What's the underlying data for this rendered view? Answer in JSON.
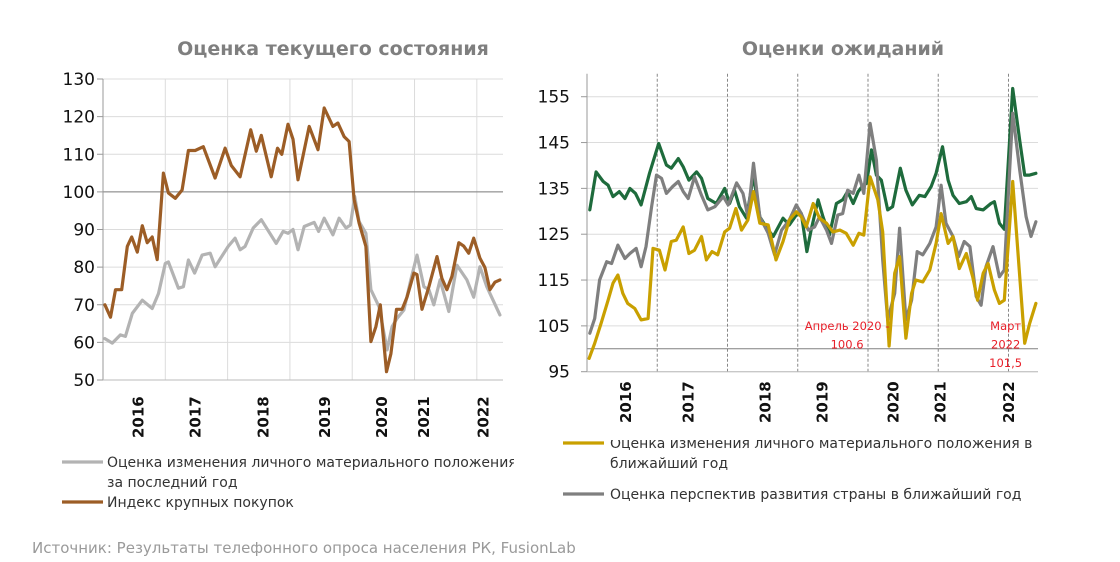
{
  "source": "Источник: Результаты телефонного опроса населения РК, FusionLab",
  "chart_data": [
    {
      "type": "line",
      "title": "Оценка текущего состояния",
      "xlim": [
        2016.0,
        2022.42
      ],
      "ylim": [
        50,
        130
      ],
      "yticks": [
        50,
        60,
        70,
        80,
        90,
        100,
        110,
        120,
        130
      ],
      "xtick_labels": [
        "2016",
        "2017",
        "2018",
        "2019",
        "2020",
        "2021",
        "2022"
      ],
      "xtick_label_pos": [
        2016.55,
        2017.47,
        2018.56,
        2019.55,
        2020.46,
        2021.14,
        2022.09
      ],
      "year_gridlines": [
        2017,
        2018,
        2019,
        2020,
        2021,
        2022
      ],
      "reference_line": 100,
      "grid": true,
      "legend_placement": "bottom",
      "series": [
        {
          "name": "Оценка изменения личного материального положения за последний год",
          "legend_line2": "за последний год",
          "legend_line1": "Оценка изменения личного материального положения",
          "color": "#b3b3b3",
          "x": [
            2016.03,
            2016.15,
            2016.28,
            2016.36,
            2016.47,
            2016.63,
            2016.79,
            2016.89,
            2017.0,
            2017.05,
            2017.21,
            2017.29,
            2017.37,
            2017.47,
            2017.59,
            2017.72,
            2017.8,
            2018.01,
            2018.12,
            2018.2,
            2018.28,
            2018.41,
            2018.54,
            2018.78,
            2018.89,
            2018.97,
            2019.05,
            2019.13,
            2019.23,
            2019.39,
            2019.46,
            2019.55,
            2019.69,
            2019.79,
            2019.9,
            2019.97,
            2020.04,
            2020.11,
            2020.22,
            2020.3,
            2020.43,
            2020.56,
            2020.64,
            2020.72,
            2020.83,
            2020.94,
            2021.04,
            2021.15,
            2021.23,
            2021.31,
            2021.41,
            2021.55,
            2021.68,
            2021.84,
            2021.95,
            2022.05,
            2022.16,
            2022.37
          ],
          "y": [
            61,
            59.8,
            62,
            61.6,
            67.7,
            71.2,
            69,
            73,
            81,
            81.4,
            74.4,
            74.8,
            81.9,
            78.4,
            83.2,
            83.7,
            80.1,
            85.5,
            87.7,
            84.6,
            85.5,
            90.4,
            92.6,
            86.3,
            89.5,
            89,
            90,
            84.6,
            90.8,
            91.9,
            89.5,
            93,
            88.6,
            93,
            90.4,
            91.2,
            98.8,
            92.1,
            89,
            74,
            69.5,
            58,
            64.2,
            66.4,
            68.6,
            76.6,
            83.2,
            74.8,
            74,
            70,
            76.6,
            68.2,
            80.5,
            76.6,
            72,
            80.1,
            74.8,
            67.3
          ]
        },
        {
          "name": "Индекс крупных покупок",
          "color": "#9c5d26",
          "x": [
            2016.03,
            2016.12,
            2016.2,
            2016.3,
            2016.39,
            2016.46,
            2016.55,
            2016.63,
            2016.71,
            2016.79,
            2016.87,
            2016.97,
            2017.05,
            2017.16,
            2017.27,
            2017.37,
            2017.48,
            2017.61,
            2017.8,
            2017.96,
            2018.06,
            2018.2,
            2018.37,
            2018.46,
            2018.54,
            2018.7,
            2018.8,
            2018.87,
            2018.97,
            2019.05,
            2019.13,
            2019.31,
            2019.45,
            2019.55,
            2019.69,
            2019.77,
            2019.87,
            2019.95,
            2020.03,
            2020.11,
            2020.22,
            2020.3,
            2020.38,
            2020.45,
            2020.55,
            2020.62,
            2020.71,
            2020.8,
            2020.88,
            2020.99,
            2021.04,
            2021.12,
            2021.23,
            2021.36,
            2021.44,
            2021.52,
            2021.6,
            2021.71,
            2021.79,
            2021.87,
            2021.95,
            2022.05,
            2022.13,
            2022.21,
            2022.29,
            2022.37
          ],
          "y": [
            70,
            66.7,
            74,
            74,
            85.5,
            88,
            84,
            91,
            86.5,
            88,
            82,
            105,
            99.7,
            98.3,
            100.5,
            111,
            111,
            112,
            103.7,
            111.6,
            107,
            104,
            116.5,
            110.8,
            115,
            104,
            111.6,
            110,
            118,
            114,
            103.2,
            117.4,
            111.2,
            122.3,
            117.4,
            118.3,
            114.7,
            113.4,
            98,
            91.7,
            85.5,
            60.2,
            64.2,
            70,
            52.2,
            57,
            68.8,
            68.8,
            72,
            78.4,
            78,
            68.8,
            74.8,
            82.8,
            77,
            74,
            77.5,
            86.5,
            85.6,
            83.7,
            87.7,
            82.4,
            79.9,
            74,
            76,
            76.6
          ]
        }
      ]
    },
    {
      "type": "line",
      "title": "Оценки ожиданий",
      "xlim": [
        2016.0,
        2022.42
      ],
      "ylim": [
        95,
        160
      ],
      "yticks": [
        95,
        105,
        115,
        125,
        135,
        145,
        155
      ],
      "xtick_labels": [
        "2016",
        "2017",
        "2018",
        "2019",
        "2020",
        "2021",
        "2022"
      ],
      "xtick_label_pos": [
        2016.54,
        2017.43,
        2018.53,
        2019.34,
        2020.35,
        2021.02,
        2021.99
      ],
      "year_gridlines": [
        2017,
        2018,
        2019,
        2020,
        2021,
        2022
      ],
      "reference_line": 100,
      "grid": true,
      "legend_placement": "bottom",
      "annotations": [
        {
          "lines": [
            "Апрель 2020 -",
            "100.6"
          ],
          "x": 2020.3,
          "y": 100.6
        },
        {
          "lines": [
            "Март",
            "2022",
            "101,5"
          ],
          "x": 2022.23,
          "y": 101.5
        }
      ],
      "series": [
        {
          "name": "",
          "color": "#1e6b3c",
          "x": [
            2016.04,
            2016.13,
            2016.23,
            2016.3,
            2016.37,
            2016.46,
            2016.54,
            2016.61,
            2016.69,
            2016.77,
            2016.89,
            2017.02,
            2017.13,
            2017.2,
            2017.3,
            2017.37,
            2017.45,
            2017.56,
            2017.63,
            2017.72,
            2017.84,
            2017.96,
            2018.03,
            2018.1,
            2018.17,
            2018.27,
            2018.37,
            2018.46,
            2018.55,
            2018.65,
            2018.79,
            2018.88,
            2018.98,
            2019.05,
            2019.13,
            2019.19,
            2019.29,
            2019.36,
            2019.45,
            2019.55,
            2019.64,
            2019.71,
            2019.79,
            2019.86,
            2019.93,
            2019.98,
            2020.05,
            2020.12,
            2020.19,
            2020.28,
            2020.35,
            2020.46,
            2020.54,
            2020.63,
            2020.73,
            2020.81,
            2020.9,
            2020.97,
            2021.06,
            2021.14,
            2021.21,
            2021.3,
            2021.4,
            2021.47,
            2021.54,
            2021.64,
            2021.75,
            2021.8,
            2021.87,
            2021.94,
            2022.06,
            2022.16,
            2022.23,
            2022.3,
            2022.39
          ],
          "y": [
            130.3,
            138.6,
            136.5,
            135.7,
            133.2,
            134.3,
            132.8,
            135.0,
            133.9,
            131.4,
            138.3,
            144.8,
            140.1,
            139.4,
            141.5,
            139.7,
            136.8,
            138.6,
            137.2,
            132.8,
            131.7,
            135.0,
            131.7,
            134.6,
            131.0,
            128.5,
            137.9,
            128.8,
            126.6,
            124.5,
            128.5,
            127.0,
            129.2,
            129.5,
            121.2,
            125.9,
            132.5,
            128.8,
            124.8,
            131.7,
            132.5,
            134.3,
            131.7,
            134.3,
            135.7,
            136.1,
            143.4,
            137.9,
            136.8,
            130.3,
            131.0,
            139.4,
            134.6,
            131.4,
            133.5,
            133.2,
            135.4,
            138.3,
            144.1,
            136.8,
            133.5,
            131.7,
            132.1,
            133.2,
            130.6,
            130.3,
            131.7,
            132.1,
            127.4,
            126.1,
            156.8,
            145.5,
            137.9,
            137.9,
            138.3
          ]
        },
        {
          "name": "Оценка перспектив развития страны в ближайший год",
          "color": "#7f7f7f",
          "x": [
            2016.04,
            2016.11,
            2016.18,
            2016.28,
            2016.35,
            2016.44,
            2016.54,
            2016.61,
            2016.7,
            2016.77,
            2016.84,
            2016.92,
            2016.99,
            2017.06,
            2017.13,
            2017.22,
            2017.3,
            2017.37,
            2017.44,
            2017.53,
            2017.63,
            2017.72,
            2017.82,
            2017.94,
            2018.01,
            2018.13,
            2018.22,
            2018.29,
            2018.37,
            2018.46,
            2018.58,
            2018.67,
            2018.77,
            2018.88,
            2018.98,
            2019.05,
            2019.15,
            2019.24,
            2019.31,
            2019.41,
            2019.48,
            2019.57,
            2019.64,
            2019.71,
            2019.79,
            2019.87,
            2019.94,
            2020.03,
            2020.12,
            2020.21,
            2020.28,
            2020.38,
            2020.45,
            2020.54,
            2020.62,
            2020.7,
            2020.78,
            2020.88,
            2020.97,
            2021.04,
            2021.11,
            2021.21,
            2021.29,
            2021.37,
            2021.45,
            2021.54,
            2021.61,
            2021.68,
            2021.78,
            2021.87,
            2021.94,
            2022.06,
            2022.16,
            2022.25,
            2022.32,
            2022.39
          ],
          "y": [
            103.4,
            106.6,
            115.0,
            119.0,
            118.6,
            122.6,
            119.7,
            120.8,
            121.9,
            117.9,
            122.3,
            131.0,
            137.9,
            137.2,
            133.9,
            135.4,
            136.5,
            134.3,
            132.8,
            137.5,
            133.5,
            130.3,
            131.0,
            133.2,
            131.4,
            136.2,
            133.9,
            128.8,
            140.5,
            128.8,
            125.2,
            120.5,
            125.9,
            128.1,
            131.4,
            129.5,
            125.9,
            126.6,
            128.8,
            125.9,
            123.0,
            129.2,
            129.5,
            134.6,
            133.9,
            137.9,
            133.9,
            149.2,
            141.2,
            119.4,
            106.3,
            112.1,
            126.3,
            106.3,
            110.6,
            121.2,
            120.5,
            123.0,
            126.6,
            135.7,
            127.4,
            124.5,
            120.1,
            123.4,
            122.3,
            111.4,
            109.5,
            117.9,
            122.3,
            115.7,
            117.2,
            151.4,
            139.0,
            128.8,
            124.5,
            127.7
          ]
        },
        {
          "name": "Оценка изменения личного материального положения в ближайший год",
          "legend_line1": "Оценка изменения личного материального положения в",
          "legend_line2": "ближайший год",
          "color": "#c9a000",
          "x": [
            2016.03,
            2016.11,
            2016.2,
            2016.3,
            2016.37,
            2016.44,
            2016.51,
            2016.58,
            2016.68,
            2016.77,
            2016.87,
            2016.94,
            2017.03,
            2017.11,
            2017.2,
            2017.27,
            2017.37,
            2017.45,
            2017.53,
            2017.63,
            2017.7,
            2017.78,
            2017.86,
            2017.96,
            2018.03,
            2018.12,
            2018.2,
            2018.29,
            2018.37,
            2018.46,
            2018.58,
            2018.69,
            2018.79,
            2018.88,
            2018.98,
            2019.05,
            2019.12,
            2019.22,
            2019.31,
            2019.41,
            2019.5,
            2019.6,
            2019.69,
            2019.79,
            2019.87,
            2019.94,
            2020.03,
            2020.14,
            2020.21,
            2020.3,
            2020.38,
            2020.45,
            2020.54,
            2020.62,
            2020.68,
            2020.78,
            2020.88,
            2020.97,
            2021.04,
            2021.14,
            2021.21,
            2021.3,
            2021.4,
            2021.49,
            2021.56,
            2021.64,
            2021.71,
            2021.8,
            2021.87,
            2021.94,
            2022.06,
            2022.15,
            2022.23,
            2022.3,
            2022.39
          ],
          "y": [
            97.9,
            101.2,
            105.5,
            110.6,
            114.3,
            116.1,
            112.1,
            109.9,
            108.8,
            106.3,
            106.6,
            121.9,
            121.5,
            117.2,
            123.4,
            123.7,
            126.6,
            120.8,
            121.5,
            124.5,
            119.4,
            121.2,
            120.5,
            125.5,
            126.3,
            130.6,
            125.9,
            128.1,
            134.3,
            127.4,
            127.0,
            119.4,
            123.4,
            128.1,
            129.9,
            128.8,
            126.6,
            131.7,
            128.5,
            127.4,
            125.5,
            125.9,
            125.2,
            122.6,
            125.2,
            124.8,
            137.5,
            132.5,
            125.5,
            100.6,
            116.5,
            120.1,
            102.3,
            112.1,
            115.0,
            114.6,
            117.2,
            123.0,
            129.5,
            123.0,
            124.5,
            117.5,
            120.8,
            115.7,
            110.6,
            116.5,
            118.6,
            112.8,
            109.9,
            110.6,
            136.5,
            117.9,
            101.2,
            105.5,
            109.9
          ]
        }
      ]
    }
  ]
}
